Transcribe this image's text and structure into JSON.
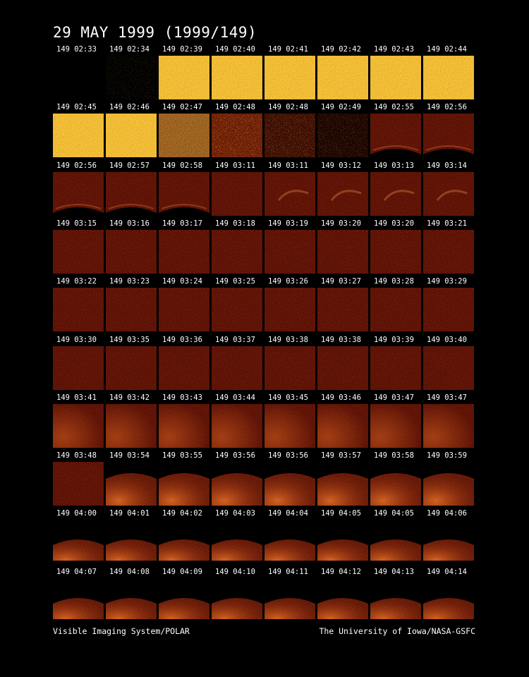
{
  "header": {
    "title": "29 MAY 1999  (1999/149)"
  },
  "footer": {
    "left": "Visible Imaging System/POLAR",
    "right": "The University of Iowa/NASA-GSFC"
  },
  "colors": {
    "background": "#000000",
    "text": "#ffffff",
    "bright_frame": "#f0c020",
    "dark_frame": "#5a0f04"
  },
  "frames": [
    {
      "label": "149 02:33",
      "kind": "black"
    },
    {
      "label": "149 02:34",
      "kind": "black-specks"
    },
    {
      "label": "149 02:39",
      "kind": "bright"
    },
    {
      "label": "149 02:40",
      "kind": "bright"
    },
    {
      "label": "149 02:41",
      "kind": "bright"
    },
    {
      "label": "149 02:42",
      "kind": "bright"
    },
    {
      "label": "149 02:43",
      "kind": "bright"
    },
    {
      "label": "149 02:44",
      "kind": "bright"
    },
    {
      "label": "149 02:45",
      "kind": "bright"
    },
    {
      "label": "149 02:46",
      "kind": "bright"
    },
    {
      "label": "149 02:47",
      "kind": "bright-dim"
    },
    {
      "label": "149 02:48",
      "kind": "noisy"
    },
    {
      "label": "149 02:48",
      "kind": "noisy-dark"
    },
    {
      "label": "149 02:49",
      "kind": "noisy-darker"
    },
    {
      "label": "149 02:55",
      "kind": "dark-bottom-edge"
    },
    {
      "label": "149 02:56",
      "kind": "dark-bottom-edge"
    },
    {
      "label": "149 02:56",
      "kind": "dark-bottom-edge"
    },
    {
      "label": "149 02:57",
      "kind": "dark-bottom-edge"
    },
    {
      "label": "149 02:58",
      "kind": "dark-bottom-edge"
    },
    {
      "label": "149 03:11",
      "kind": "dark"
    },
    {
      "label": "149 03:11",
      "kind": "dark-arc"
    },
    {
      "label": "149 03:12",
      "kind": "dark-arc"
    },
    {
      "label": "149 03:13",
      "kind": "dark-arc"
    },
    {
      "label": "149 03:14",
      "kind": "dark-arc"
    },
    {
      "label": "149 03:15",
      "kind": "dark"
    },
    {
      "label": "149 03:16",
      "kind": "dark"
    },
    {
      "label": "149 03:17",
      "kind": "dark"
    },
    {
      "label": "149 03:18",
      "kind": "dark"
    },
    {
      "label": "149 03:19",
      "kind": "dark"
    },
    {
      "label": "149 03:20",
      "kind": "dark"
    },
    {
      "label": "149 03:20",
      "kind": "dark"
    },
    {
      "label": "149 03:21",
      "kind": "dark"
    },
    {
      "label": "149 03:22",
      "kind": "dark"
    },
    {
      "label": "149 03:23",
      "kind": "dark"
    },
    {
      "label": "149 03:24",
      "kind": "dark"
    },
    {
      "label": "149 03:25",
      "kind": "dark"
    },
    {
      "label": "149 03:26",
      "kind": "dark"
    },
    {
      "label": "149 03:27",
      "kind": "dark"
    },
    {
      "label": "149 03:28",
      "kind": "dark"
    },
    {
      "label": "149 03:29",
      "kind": "dark"
    },
    {
      "label": "149 03:30",
      "kind": "dark"
    },
    {
      "label": "149 03:35",
      "kind": "dark"
    },
    {
      "label": "149 03:36",
      "kind": "dark"
    },
    {
      "label": "149 03:37",
      "kind": "dark"
    },
    {
      "label": "149 03:38",
      "kind": "dark"
    },
    {
      "label": "149 03:38",
      "kind": "dark"
    },
    {
      "label": "149 03:39",
      "kind": "dark"
    },
    {
      "label": "149 03:40",
      "kind": "dark"
    },
    {
      "label": "149 03:41",
      "kind": "dark-glow"
    },
    {
      "label": "149 03:42",
      "kind": "dark-glow"
    },
    {
      "label": "149 03:43",
      "kind": "dark-glow"
    },
    {
      "label": "149 03:44",
      "kind": "dark-glow"
    },
    {
      "label": "149 03:45",
      "kind": "dark-glow"
    },
    {
      "label": "149 03:46",
      "kind": "dark-glow"
    },
    {
      "label": "149 03:47",
      "kind": "dark-glow"
    },
    {
      "label": "149 03:47",
      "kind": "dark-glow"
    },
    {
      "label": "149 03:48",
      "kind": "dark"
    },
    {
      "label": "149 03:54",
      "kind": "dome"
    },
    {
      "label": "149 03:55",
      "kind": "dome"
    },
    {
      "label": "149 03:56",
      "kind": "dome"
    },
    {
      "label": "149 03:56",
      "kind": "dome"
    },
    {
      "label": "149 03:57",
      "kind": "dome"
    },
    {
      "label": "149 03:58",
      "kind": "dome"
    },
    {
      "label": "149 03:59",
      "kind": "dome"
    },
    {
      "label": "149 04:00",
      "kind": "dome-low"
    },
    {
      "label": "149 04:01",
      "kind": "dome-low"
    },
    {
      "label": "149 04:02",
      "kind": "dome-low"
    },
    {
      "label": "149 04:03",
      "kind": "dome-low"
    },
    {
      "label": "149 04:04",
      "kind": "dome-low"
    },
    {
      "label": "149 04:05",
      "kind": "dome-low"
    },
    {
      "label": "149 04:05",
      "kind": "dome-low"
    },
    {
      "label": "149 04:06",
      "kind": "dome-low"
    },
    {
      "label": "149 04:07",
      "kind": "dome-low"
    },
    {
      "label": "149 04:08",
      "kind": "dome-low"
    },
    {
      "label": "149 04:09",
      "kind": "dome-low"
    },
    {
      "label": "149 04:10",
      "kind": "dome-low"
    },
    {
      "label": "149 04:11",
      "kind": "dome-low"
    },
    {
      "label": "149 04:12",
      "kind": "dome-low"
    },
    {
      "label": "149 04:13",
      "kind": "dome-low"
    },
    {
      "label": "149 04:14",
      "kind": "dome-low"
    }
  ]
}
